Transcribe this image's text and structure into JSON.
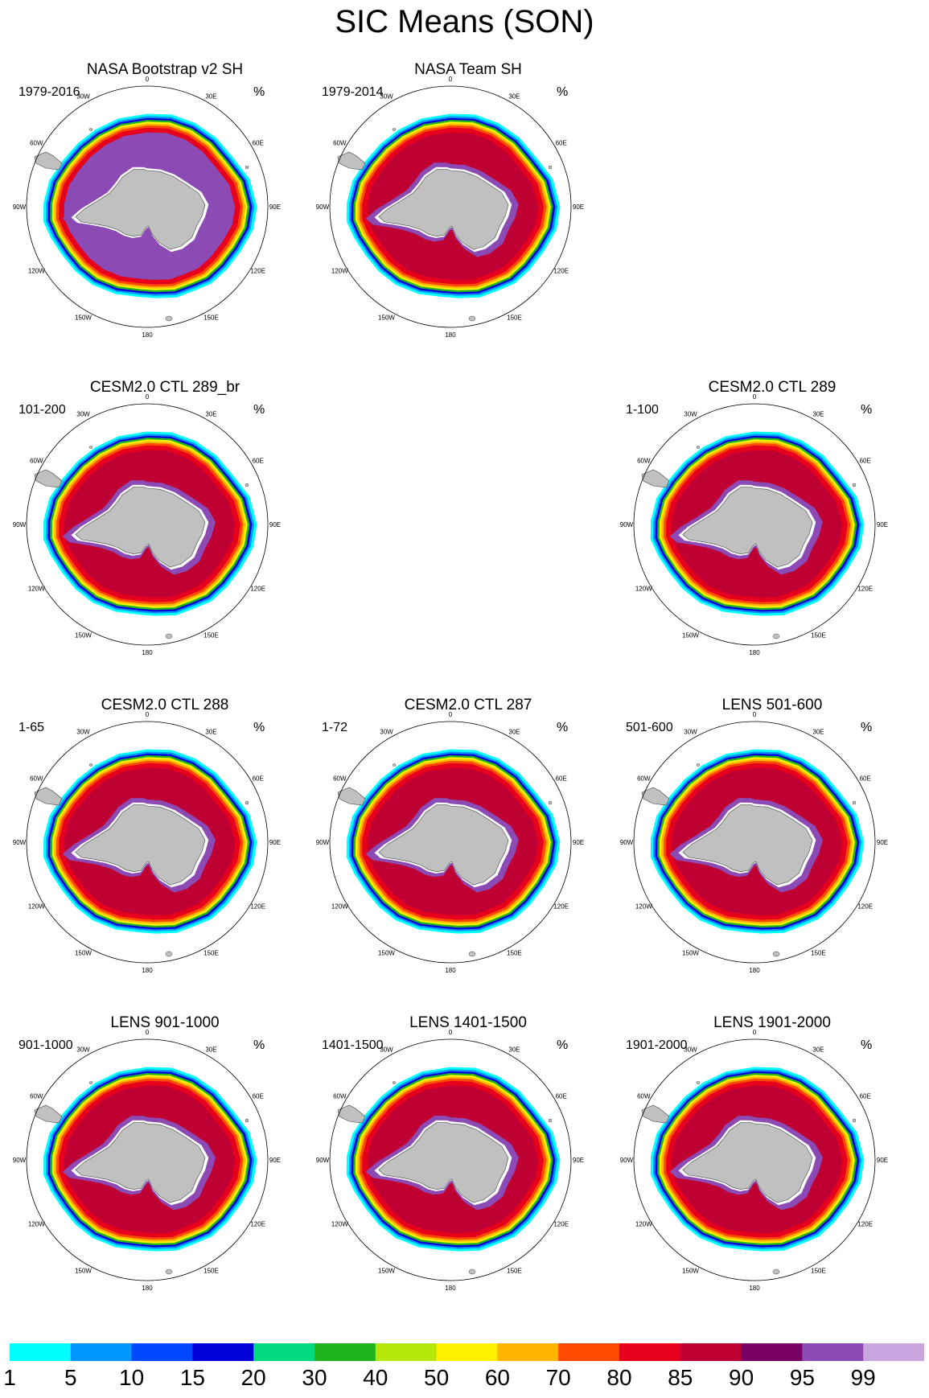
{
  "title": "SIC Means (SON)",
  "unit_symbol": "%",
  "longitude_labels": [
    "0",
    "30E",
    "60E",
    "90E",
    "120E",
    "150E",
    "180",
    "150W",
    "120W",
    "90W",
    "60W",
    "30W"
  ],
  "colors": {
    "land": "#c0c0c0",
    "coast_gap": "#ffffff"
  },
  "panels": [
    {
      "id": "nasa-bootstrap",
      "title": "NASA Bootstrap v2 SH",
      "period": "1979-2016",
      "inner_class": "95-99"
    },
    {
      "id": "nasa-team",
      "title": "NASA Team SH",
      "period": "1979-2014",
      "inner_class": "85-90"
    },
    {
      "id": "cesm-289-br",
      "title": "CESM2.0 CTL 289_br",
      "period": "101-200",
      "inner_class": "85-90"
    },
    {
      "id": "cesm-289",
      "title": "CESM2.0 CTL 289",
      "period": "1-100",
      "inner_class": "85-90"
    },
    {
      "id": "cesm-288",
      "title": "CESM2.0 CTL 288",
      "period": "1-65",
      "inner_class": "85-90"
    },
    {
      "id": "cesm-287",
      "title": "CESM2.0 CTL 287",
      "period": "1-72",
      "inner_class": "85-90"
    },
    {
      "id": "lens-501",
      "title": "LENS 501-600",
      "period": "501-600",
      "inner_class": "85-90"
    },
    {
      "id": "lens-901",
      "title": "LENS 901-1000",
      "period": "901-1000",
      "inner_class": "85-90"
    },
    {
      "id": "lens-1401",
      "title": "LENS 1401-1500",
      "period": "1401-1500",
      "inner_class": "85-90"
    },
    {
      "id": "lens-1901",
      "title": "LENS 1901-2000",
      "period": "1901-2000",
      "inner_class": "85-90"
    }
  ],
  "colorbar": {
    "labels": [
      "1",
      "5",
      "10",
      "15",
      "20",
      "30",
      "40",
      "50",
      "60",
      "70",
      "80",
      "85",
      "90",
      "95",
      "99"
    ],
    "colors": [
      "#00ffff",
      "#0095ff",
      "#0048ff",
      "#0000d9",
      "#00d980",
      "#1fb51f",
      "#b4e60a",
      "#fff000",
      "#ffb400",
      "#ff4b00",
      "#e6001e",
      "#bf0032",
      "#780064",
      "#8c4bb4",
      "#c8a5dc"
    ]
  }
}
